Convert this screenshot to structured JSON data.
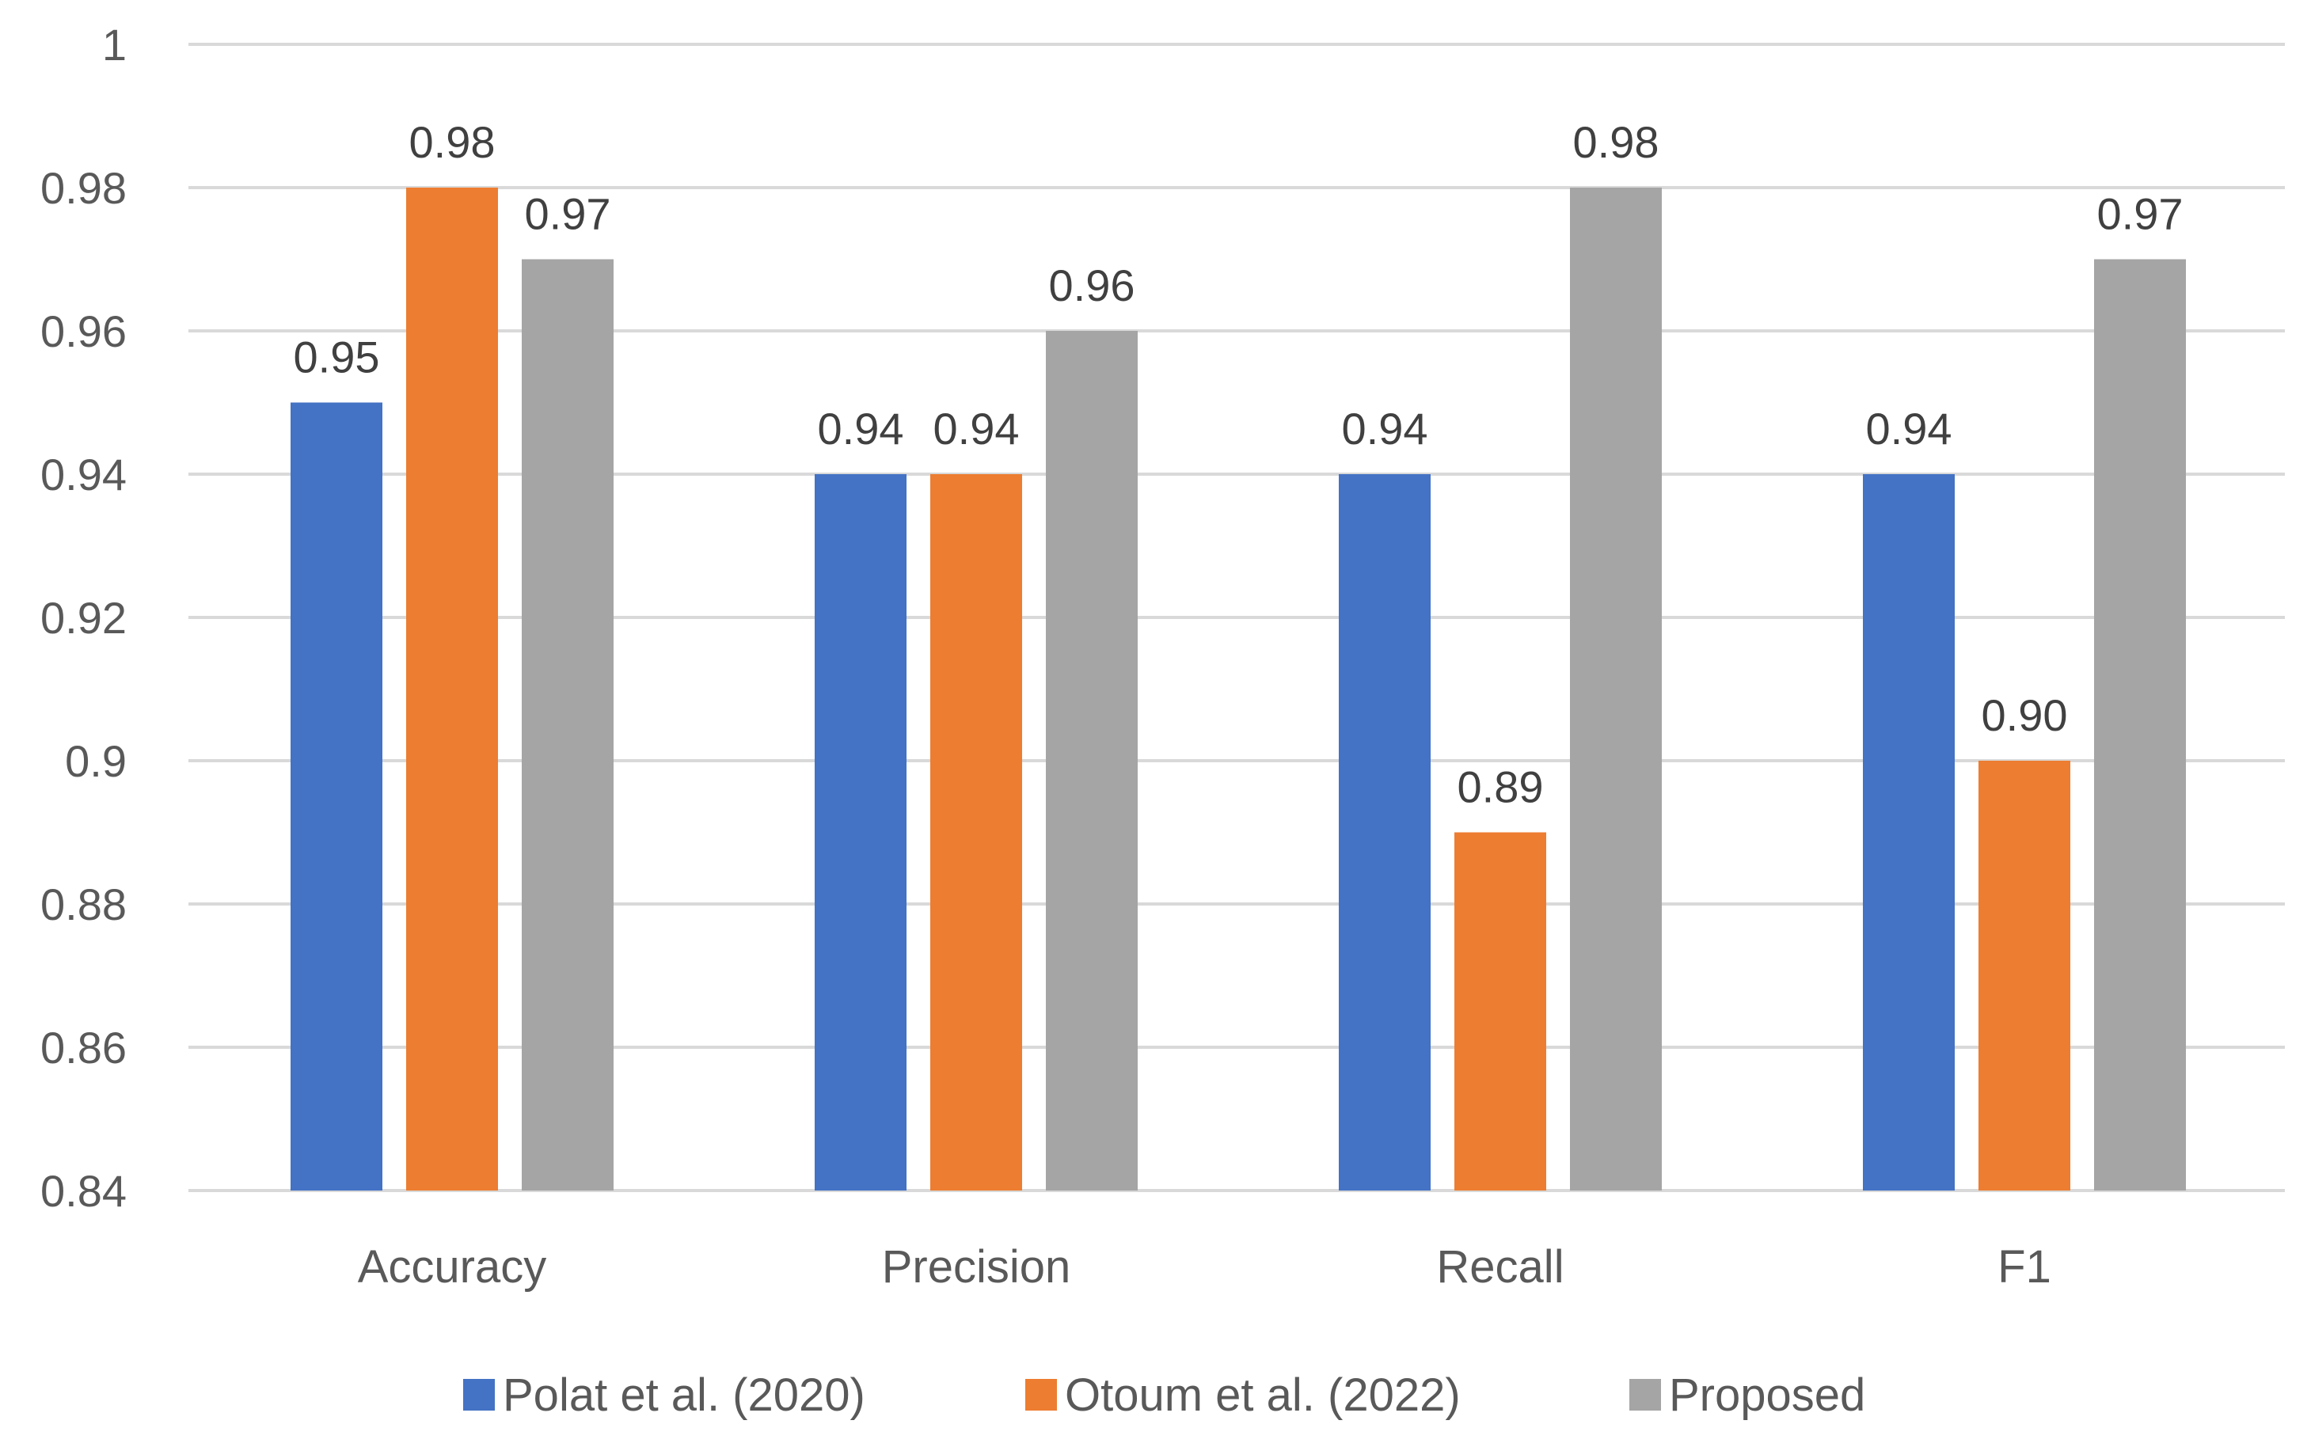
{
  "chart_data": {
    "type": "bar",
    "title": "",
    "xlabel": "",
    "ylabel": "",
    "categories": [
      "Accuracy",
      "Precision",
      "Recall",
      "F1"
    ],
    "ylim": [
      0.84,
      1
    ],
    "yticks": [
      0.84,
      0.86,
      0.88,
      0.9,
      0.92,
      0.94,
      0.96,
      0.98,
      1
    ],
    "ytick_labels": [
      "0.84",
      "0.86",
      "0.88",
      "0.9",
      "0.92",
      "0.94",
      "0.96",
      "0.98",
      "1"
    ],
    "grid": true,
    "legend_position": "bottom",
    "series": [
      {
        "name": "Polat et al. (2020)",
        "color": "#4472C4",
        "values": [
          0.95,
          0.94,
          0.94,
          0.94
        ],
        "labels": [
          "0.95",
          "0.94",
          "0.94",
          "0.94"
        ]
      },
      {
        "name": "Otoum et al. (2022)",
        "color": "#ED7D31",
        "values": [
          0.98,
          0.94,
          0.89,
          0.9
        ],
        "labels": [
          "0.98",
          "0.94",
          "0.89",
          "0.90"
        ]
      },
      {
        "name": "Proposed",
        "color": "#A5A5A5",
        "values": [
          0.97,
          0.96,
          0.98,
          0.97
        ],
        "labels": [
          "0.97",
          "0.96",
          "0.98",
          "0.97"
        ]
      }
    ]
  }
}
